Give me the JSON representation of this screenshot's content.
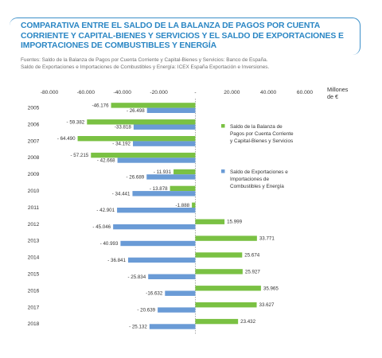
{
  "header": {
    "title": "COMPARATIVA ENTRE EL SALDO DE LA BALANZA DE PAGOS POR CUENTA CORRIENTE Y CAPITAL-BIENES Y SERVICIOS Y EL SALDO DE EXPORTACIONES E IMPORTACIONES DE COMBUSTIBLES Y ENERGÍA",
    "source_line1": "Fuentes: Saldo de la Balanza de Pagos por Cuenta Corriente y Capital-Bienes y Servicios: Banco de España.",
    "source_line2": "Saldo de Exportaciones e Importaciones de Combustibles y Energía: ICEX España Exportación e Inversiones."
  },
  "colors": {
    "green": "#7ac143",
    "blue": "#6a9bd6",
    "accent": "#2a86c4"
  },
  "chart_data": {
    "type": "bar",
    "orientation": "horizontal",
    "unit_label_line1": "Millones",
    "unit_label_line2": "de €",
    "xlim": [
      -80000,
      60000
    ],
    "x_ticks": [
      -80000,
      -60000,
      -40000,
      -20000,
      0,
      20000,
      40000,
      60000
    ],
    "x_tick_labels": [
      "-80.000",
      "-60.000",
      "-40.000",
      "-20.000",
      "-",
      "20.000",
      "40.000",
      "60.000"
    ],
    "grid": false,
    "legend_position": "right",
    "categories": [
      "2005",
      "2006",
      "2007",
      "2008",
      "2009",
      "2010",
      "2011",
      "2012",
      "2013",
      "2014",
      "2015",
      "2016",
      "2017",
      "2018"
    ],
    "series": [
      {
        "name": "Saldo de la Balanza de Pagos por Cuenta Corriente y Capital-Bienes y Servicios",
        "legend_lines": [
          "Saldo de la Balanza de",
          "Pagos por Cuenta Corriente",
          "y Capital-Bienes y Servicios"
        ],
        "color": "#7ac143",
        "values": [
          -46176,
          -59382,
          -64490,
          -57215,
          -11931,
          -13878,
          -1888,
          15999,
          33771,
          25674,
          25927,
          35965,
          33627,
          23432
        ],
        "labels": [
          "-46.176",
          "- 59.382",
          "- 64.490",
          "- 57.215",
          "- 11.931",
          "- 13.878",
          "-1.888",
          "15.999",
          "33.771",
          "25.674",
          "25.927",
          "35.965",
          "33.627",
          "23.432"
        ]
      },
      {
        "name": "Saldo de Exportaciones e Importaciones de Combustibles y Energía",
        "legend_lines": [
          "Saldo de Exportaciones e",
          "Importaciones de",
          "Combustibles y Energía"
        ],
        "color": "#6a9bd6",
        "values": [
          -26498,
          -33818,
          -34192,
          -42668,
          -26689,
          -34441,
          -42901,
          -45046,
          -40993,
          -36841,
          -25834,
          -16632,
          -20639,
          -25132
        ],
        "labels": [
          "- 26.498",
          "-33.818",
          "- 34.192",
          "- 42.668",
          "- 26.689",
          "- 34.441",
          "- 42.901",
          "- 45.046",
          "- 40.993",
          "- 36.841",
          "- 25.834",
          "-16.632",
          "- 20.639",
          "- 25.132"
        ]
      }
    ]
  }
}
